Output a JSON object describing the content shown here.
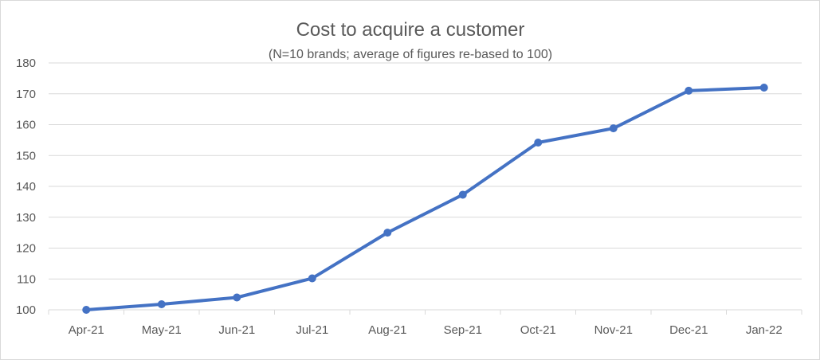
{
  "chart_data": {
    "type": "line",
    "title": "Cost to acquire a customer",
    "subtitle": "(N=10 brands; average of figures re-based to 100)",
    "xlabel": "",
    "ylabel": "",
    "categories": [
      "Apr-21",
      "May-21",
      "Jun-21",
      "Jul-21",
      "Aug-21",
      "Sep-21",
      "Oct-21",
      "Nov-21",
      "Dec-21",
      "Jan-22"
    ],
    "series": [
      {
        "values": [
          100,
          101.8,
          104,
          110.2,
          125,
          137.3,
          154.2,
          158.8,
          171,
          172
        ],
        "color": "#4472c4"
      }
    ],
    "ylim": [
      100,
      180
    ],
    "yticks": [
      100,
      110,
      120,
      130,
      140,
      150,
      160,
      170,
      180
    ],
    "grid": true,
    "legend": "none",
    "colors": {
      "line": "#4472c4",
      "grid": "#d9d9d9",
      "text": "#595959"
    }
  }
}
